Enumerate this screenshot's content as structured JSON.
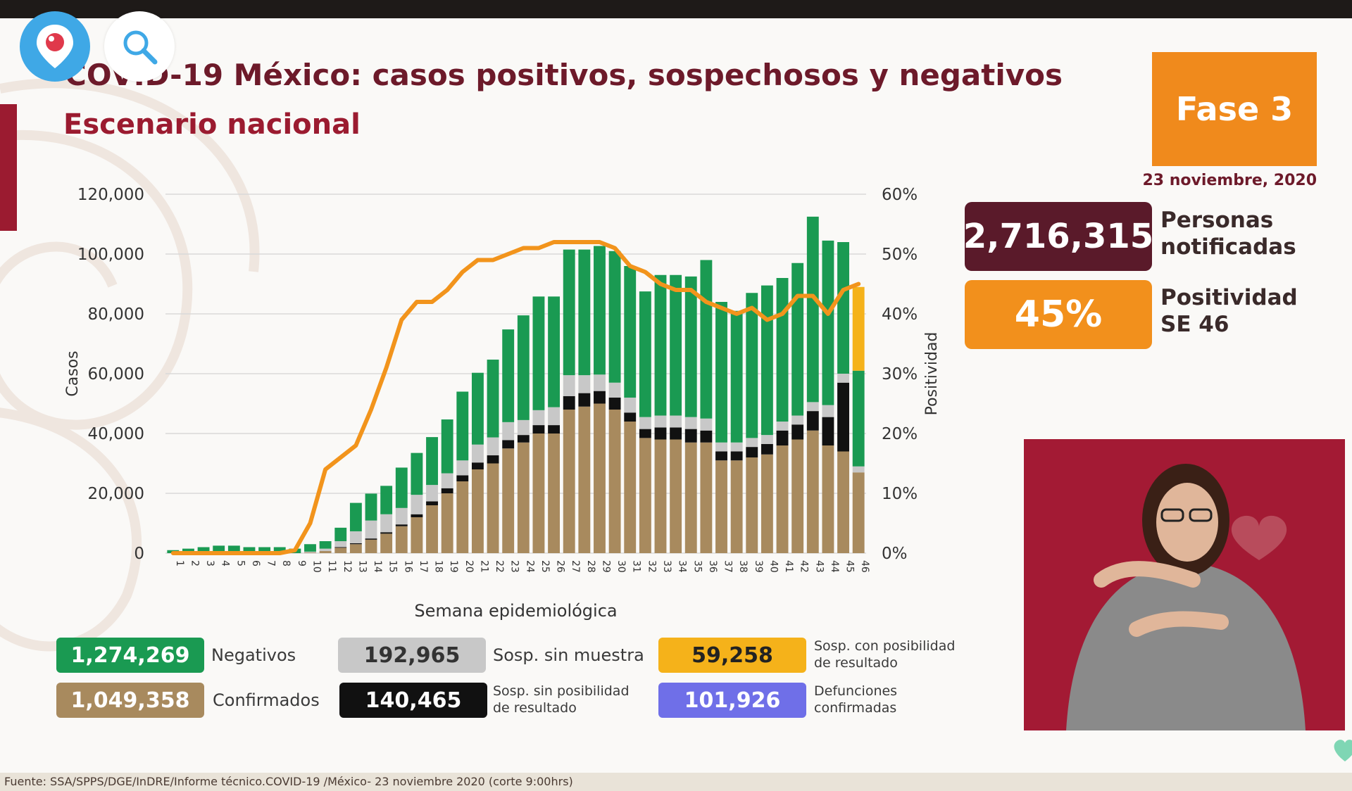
{
  "header": {
    "title": "COVID-19 México: casos positivos, sospechosos y negativos",
    "subtitle": "Escenario nacional"
  },
  "overlay_buttons": {
    "periscope": "periscope-icon",
    "search": "search-icon"
  },
  "phase": {
    "label": "Fase 3",
    "date": "23 noviembre, 2020"
  },
  "stats": {
    "persons_value": "2,716,315",
    "persons_label_1": "Personas",
    "persons_label_2": "notificadas",
    "positivity_value": "45%",
    "positivity_label_1": "Positividad",
    "positivity_label_2": "SE 46"
  },
  "legend": {
    "negativos_value": "1,274,269",
    "negativos_label": "Negativos",
    "confirmados_value": "1,049,358",
    "confirmados_label": "Confirmados",
    "sin_muestra_value": "192,965",
    "sin_muestra_label": "Sosp. sin muestra",
    "sin_posibilidad_value": "140,465",
    "sin_posibilidad_label_1": "Sosp. sin posibilidad",
    "sin_posibilidad_label_2": "de resultado",
    "con_posibilidad_value": "59,258",
    "con_posibilidad_label_1": "Sosp. con posibilidad",
    "con_posibilidad_label_2": "de resultado",
    "defunciones_value": "101,926",
    "defunciones_label_1": "Defunciones",
    "defunciones_label_2": "confirmadas"
  },
  "source": "Fuente: SSA/SPPS/DGE/InDRE/Informe técnico.COVID-19 /México- 23 noviembre 2020 (corte 9:00hrs)",
  "colors": {
    "confirmados": "#a88a5e",
    "sin_posibilidad": "#111111",
    "sin_muestra": "#c8c8c8",
    "negativos": "#1a9a52",
    "con_posibilidad": "#f5b21a",
    "positividad": "#f2941c",
    "defunciones": "#6f6fe8"
  },
  "chart_data": {
    "type": "bar",
    "stacked": true,
    "xlabel": "Semana epidemiológica",
    "ylabel": "Casos",
    "y2label": "Positividad",
    "ylim": [
      0,
      120000
    ],
    "y2lim": [
      0,
      60
    ],
    "yticks": [
      "0",
      "20,000",
      "40,000",
      "60,000",
      "80,000",
      "100,000",
      "120,000"
    ],
    "y2ticks": [
      "0%",
      "10%",
      "20%",
      "30%",
      "40%",
      "50%",
      "60%"
    ],
    "grid": true,
    "categories": [
      "1",
      "2",
      "3",
      "4",
      "5",
      "6",
      "7",
      "8",
      "9",
      "10",
      "11",
      "12",
      "13",
      "14",
      "15",
      "16",
      "17",
      "18",
      "19",
      "20",
      "21",
      "22",
      "23",
      "24",
      "25",
      "26",
      "27",
      "28",
      "29",
      "30",
      "31",
      "32",
      "33",
      "34",
      "35",
      "36",
      "37",
      "38",
      "39",
      "40",
      "41",
      "42",
      "43",
      "44",
      "45",
      "46"
    ],
    "series": [
      {
        "name": "Confirmados",
        "values": [
          0,
          0,
          0,
          0,
          0,
          0,
          0,
          0,
          0,
          200,
          700,
          1800,
          3000,
          4500,
          6500,
          9000,
          12000,
          16000,
          20000,
          24000,
          28000,
          30000,
          35000,
          37000,
          40000,
          40000,
          48000,
          49000,
          50000,
          48000,
          44000,
          38500,
          38000,
          38000,
          37000,
          37000,
          31000,
          31000,
          32000,
          33000,
          36000,
          38000,
          41000,
          36000,
          34000,
          27000
        ]
      },
      {
        "name": "Sosp. sin posibilidad de resultado",
        "values": [
          0,
          0,
          0,
          0,
          0,
          0,
          0,
          0,
          0,
          0,
          0,
          200,
          300,
          400,
          500,
          600,
          1000,
          1300,
          1700,
          2000,
          2300,
          2700,
          2800,
          2500,
          2800,
          2800,
          4500,
          4500,
          4200,
          4000,
          3000,
          3000,
          4000,
          4000,
          4500,
          4000,
          3000,
          3000,
          3500,
          3500,
          5000,
          5000,
          6500,
          9500,
          23000,
          0
        ]
      },
      {
        "name": "Sosp. sin muestra",
        "values": [
          0,
          0,
          0,
          0,
          0,
          0,
          0,
          0,
          0,
          300,
          800,
          2000,
          4000,
          6000,
          6000,
          5500,
          6500,
          5500,
          5000,
          5000,
          6000,
          6000,
          6000,
          5000,
          5000,
          6000,
          7000,
          6000,
          5500,
          5000,
          5000,
          4000,
          4000,
          4000,
          4000,
          4000,
          3000,
          3000,
          3000,
          3000,
          3000,
          3000,
          3000,
          4000,
          3000,
          2000
        ]
      },
      {
        "name": "Negativos",
        "values": [
          1000,
          1500,
          2000,
          2500,
          2500,
          2000,
          2000,
          2000,
          1500,
          2500,
          2500,
          4500,
          9500,
          9000,
          9500,
          13500,
          14000,
          16000,
          18000,
          23000,
          24000,
          26000,
          31000,
          35000,
          38000,
          37000,
          42000,
          42000,
          43000,
          44000,
          44000,
          42000,
          47000,
          47000,
          47000,
          53000,
          47000,
          44000,
          48500,
          50000,
          48000,
          51000,
          62000,
          55000,
          44000,
          32000
        ]
      },
      {
        "name": "Sosp. con posibilidad de resultado",
        "values": [
          0,
          0,
          0,
          0,
          0,
          0,
          0,
          0,
          0,
          0,
          0,
          0,
          0,
          0,
          0,
          0,
          0,
          0,
          0,
          0,
          0,
          0,
          0,
          0,
          0,
          0,
          0,
          0,
          0,
          0,
          0,
          0,
          0,
          0,
          0,
          0,
          0,
          0,
          0,
          0,
          0,
          0,
          0,
          0,
          0,
          28000
        ]
      }
    ],
    "line": {
      "name": "Positividad",
      "axis": "right",
      "values": [
        0,
        0,
        0,
        0,
        0,
        0,
        0,
        0,
        0.5,
        5,
        14,
        16,
        18,
        24,
        31,
        39,
        42,
        42,
        44,
        47,
        49,
        49,
        50,
        51,
        51,
        52,
        52,
        52,
        52,
        51,
        48,
        47,
        45,
        44,
        44,
        42,
        41,
        40,
        41,
        39,
        40,
        43,
        43,
        40,
        44,
        45
      ]
    }
  }
}
